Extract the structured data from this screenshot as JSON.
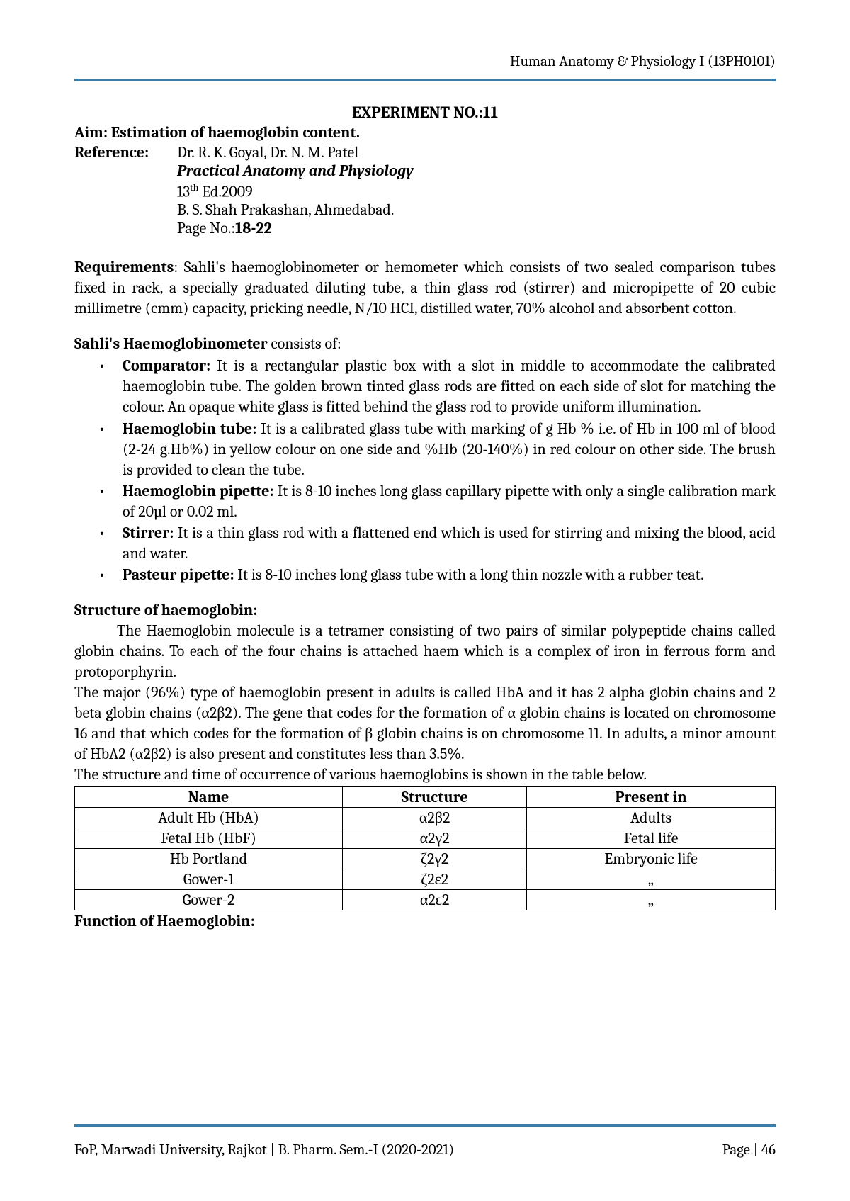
{
  "header": {
    "course": "Human Anatomy & Physiology I (13PH0101)"
  },
  "experiment": {
    "title": "EXPERIMENT NO.:11",
    "aim_label": "Aim: Estimation of haemoglobin content.",
    "reference_label": "Reference:",
    "reference_authors": "Dr. R. K. Goyal, Dr. N. M. Patel",
    "reference_book": "Practical Anatomy and Physiology",
    "reference_edition_pre": "13",
    "reference_edition_sup": "th",
    "reference_edition_post": " Ed.2009",
    "reference_publisher": "B. S. Shah Prakashan, Ahmedabad.",
    "reference_page_label": "Page No.:",
    "reference_page_value": "18-22"
  },
  "requirements": {
    "label": "Requirements",
    "text": ": Sahli's haemoglobinometer or hemometer which consists of two sealed comparison tubes fixed in rack, a specially graduated diluting tube, a thin glass rod (stirrer) and micropipette of 20 cubic millimetre (cmm) capacity, pricking needle, N/10 HCI, distilled water, 70% alcohol and absorbent cotton."
  },
  "sahli": {
    "heading_bold": "Sahli's Haemoglobinometer",
    "heading_rest": " consists of:",
    "items": [
      {
        "label": "Comparator:",
        "text": " It is a rectangular plastic box with a slot in middle to accommodate the calibrated haemoglobin tube. The golden brown tinted glass rods are fitted on each side of slot for matching the colour. An opaque white glass is fitted behind the glass rod to provide uniform illumination."
      },
      {
        "label": "Haemoglobin tube:",
        "text": " It is a calibrated glass tube with marking of g Hb % i.e. of Hb in 100 ml of blood (2-24 g.Hb%) in yellow colour on one side and %Hb (20-140%) in red colour on other side. The brush is provided to clean the tube."
      },
      {
        "label": "Haemoglobin pipette:",
        "text": " It is 8-10 inches long glass capillary pipette with only a single calibration mark of 20µl or 0.02 ml."
      },
      {
        "label": "Stirrer:",
        "text": " It is a thin glass rod with a flattened end which is used for stirring and mixing the blood, acid and water."
      },
      {
        "label": "Pasteur pipette:",
        "text": " It is 8-10 inches long glass tube with a long thin nozzle with a rubber teat."
      }
    ]
  },
  "structure": {
    "heading": "Structure of haemoglobin:",
    "p1": "The Haemoglobin molecule is a tetramer consisting of two pairs of similar polypeptide chains called globin chains. To each of the four chains is attached haem which is a complex of iron in ferrous form and protoporphyrin.",
    "p2": "The major (96%) type of haemoglobin present in adults is called HbA and it has 2 alpha globin chains and 2 beta globin chains (α2β2). The gene that codes for the formation of α globin chains is located on chromosome 16 and that which codes for the formation of β globin chains is on chromosome 11. In adults, a minor amount of HbA2 (α2β2) is also present and constitutes less than 3.5%.",
    "p3": "The structure and time of occurrence of various haemoglobins is shown in the table below."
  },
  "table": {
    "headers": [
      "Name",
      "Structure",
      "Present in"
    ],
    "rows": [
      [
        "Adult Hb (HbA)",
        "α2β2",
        "Adults"
      ],
      [
        "Fetal Hb (HbF)",
        "α2γ2",
        "Fetal life"
      ],
      [
        "Hb Portland",
        "ζ2γ2",
        "Embryonic life"
      ],
      [
        "Gower-1",
        "ζ2ε2",
        "„"
      ],
      [
        "Gower-2",
        "α2ε2",
        "„"
      ]
    ]
  },
  "function_heading": "Function of Haemoglobin:",
  "footer": {
    "left": "FoP, Marwadi University, Rajkot | B. Pharm. Sem.-I (2020-2021)",
    "right": "Page | 46"
  }
}
